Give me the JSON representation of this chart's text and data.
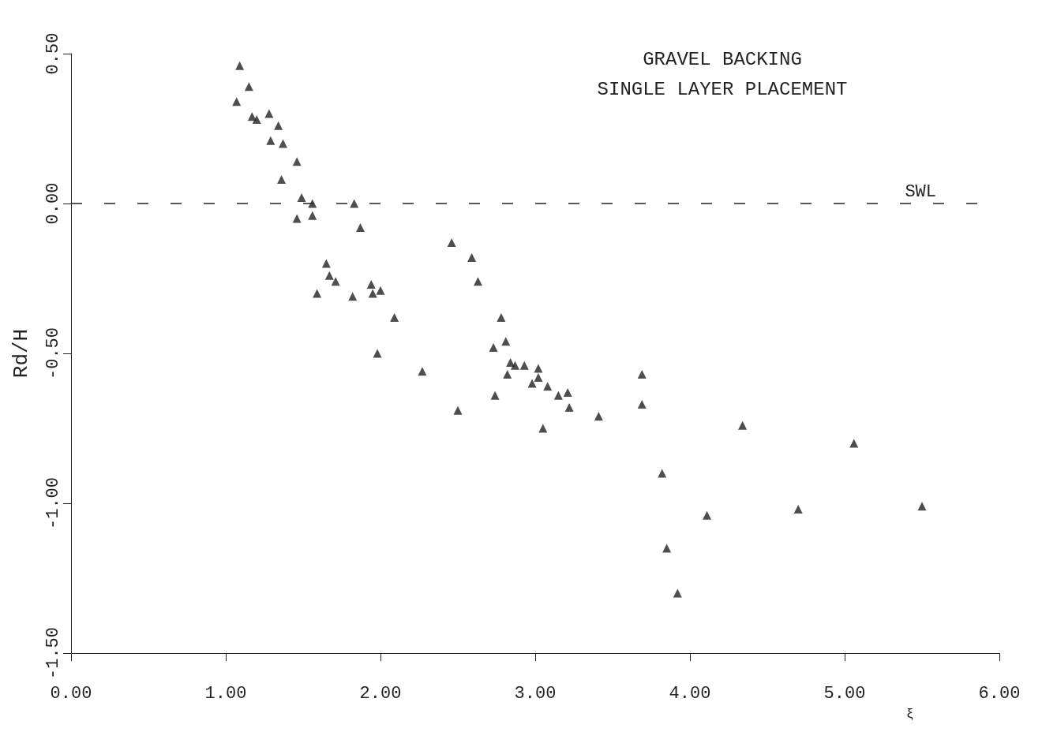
{
  "chart_data": {
    "type": "scatter",
    "title": "GRAVEL BACKING",
    "subtitle": "SINGLE LAYER PLACEMENT",
    "xlabel": "ξ",
    "ylabel": "Rd/H",
    "xlim": [
      0,
      6
    ],
    "ylim": [
      -1.5,
      0.5
    ],
    "xticks": [
      {
        "value": 0,
        "label": "0.00"
      },
      {
        "value": 1,
        "label": "1.00"
      },
      {
        "value": 2,
        "label": "2.00"
      },
      {
        "value": 3,
        "label": "3.00"
      },
      {
        "value": 4,
        "label": "4.00"
      },
      {
        "value": 5,
        "label": "5.00"
      },
      {
        "value": 6,
        "label": "6.00"
      }
    ],
    "yticks": [
      {
        "value": -1.5,
        "label": "-1.50"
      },
      {
        "value": -1,
        "label": "-1.00"
      },
      {
        "value": -0.5,
        "label": "-0.50"
      },
      {
        "value": 0,
        "label": "0.00"
      },
      {
        "value": 0.5,
        "label": "0.50"
      }
    ],
    "grid": false,
    "marker": "triangle",
    "ref_lines": [
      {
        "axis": "y",
        "value": 0,
        "label": "SWL",
        "color": "#222222",
        "line_style": "dashed"
      }
    ],
    "series": [
      {
        "color": "#222222",
        "x": [
          1.09,
          1.15,
          1.07,
          1.17,
          1.2,
          1.28,
          1.34,
          1.29,
          1.37,
          1.46,
          1.36,
          1.49,
          1.56,
          1.83,
          1.46,
          1.56,
          1.87,
          2.46,
          2.59,
          2.63,
          1.65,
          1.67,
          1.71,
          1.59,
          1.82,
          1.94,
          1.95,
          2.0,
          2.09,
          1.98,
          2.27,
          2.5,
          2.78,
          2.81,
          2.73,
          2.84,
          2.87,
          2.93,
          2.82,
          3.02,
          3.02,
          2.98,
          3.08,
          3.15,
          3.21,
          3.22,
          2.74,
          3.05,
          3.41,
          3.69,
          3.69,
          4.34,
          5.06,
          3.82,
          4.11,
          4.7,
          5.5,
          3.85,
          3.92
        ],
        "values": [
          0.46,
          0.39,
          0.34,
          0.29,
          0.28,
          0.3,
          0.26,
          0.21,
          0.2,
          0.14,
          0.08,
          0.02,
          0.0,
          0.0,
          -0.05,
          -0.04,
          -0.08,
          -0.13,
          -0.18,
          -0.26,
          -0.2,
          -0.24,
          -0.26,
          -0.3,
          -0.31,
          -0.27,
          -0.3,
          -0.29,
          -0.38,
          -0.5,
          -0.56,
          -0.69,
          -0.38,
          -0.46,
          -0.48,
          -0.53,
          -0.54,
          -0.54,
          -0.57,
          -0.55,
          -0.58,
          -0.6,
          -0.61,
          -0.64,
          -0.63,
          -0.68,
          -0.64,
          -0.75,
          -0.71,
          -0.57,
          -0.67,
          -0.74,
          -0.8,
          -0.9,
          -1.04,
          -1.02,
          -1.01,
          -1.15,
          -1.3
        ]
      }
    ]
  }
}
